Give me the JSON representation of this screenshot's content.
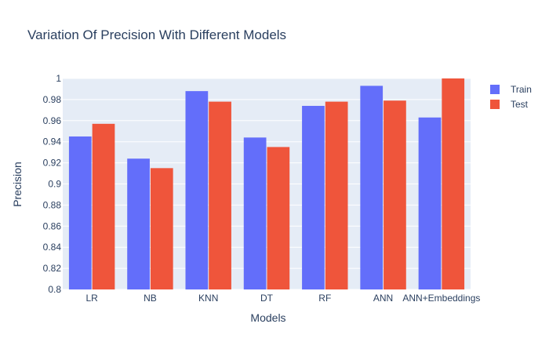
{
  "chart_data": {
    "type": "bar",
    "title": "Variation Of Precision With Different Models",
    "xlabel": "Models",
    "ylabel": "Precision",
    "categories": [
      "LR",
      "NB",
      "KNN",
      "DT",
      "RF",
      "ANN",
      "ANN+Embeddings"
    ],
    "series": [
      {
        "name": "Train",
        "values": [
          0.945,
          0.924,
          0.988,
          0.944,
          0.974,
          0.993,
          0.963
        ]
      },
      {
        "name": "Test",
        "values": [
          0.957,
          0.915,
          0.978,
          0.935,
          0.978,
          0.979,
          1.0
        ]
      }
    ],
    "ylim": [
      0.8,
      1.0
    ],
    "yticks": [
      "0.8",
      "0.82",
      "0.84",
      "0.86",
      "0.88",
      "0.9",
      "0.92",
      "0.94",
      "0.96",
      "0.98",
      "1"
    ],
    "grid": true,
    "legend_position": "top-right",
    "colors": {
      "Train": "#636efa",
      "Test": "#ef553b",
      "plot_bg": "#e5ecf6",
      "grid": "#ffffff",
      "text": "#2a3f5f"
    }
  }
}
